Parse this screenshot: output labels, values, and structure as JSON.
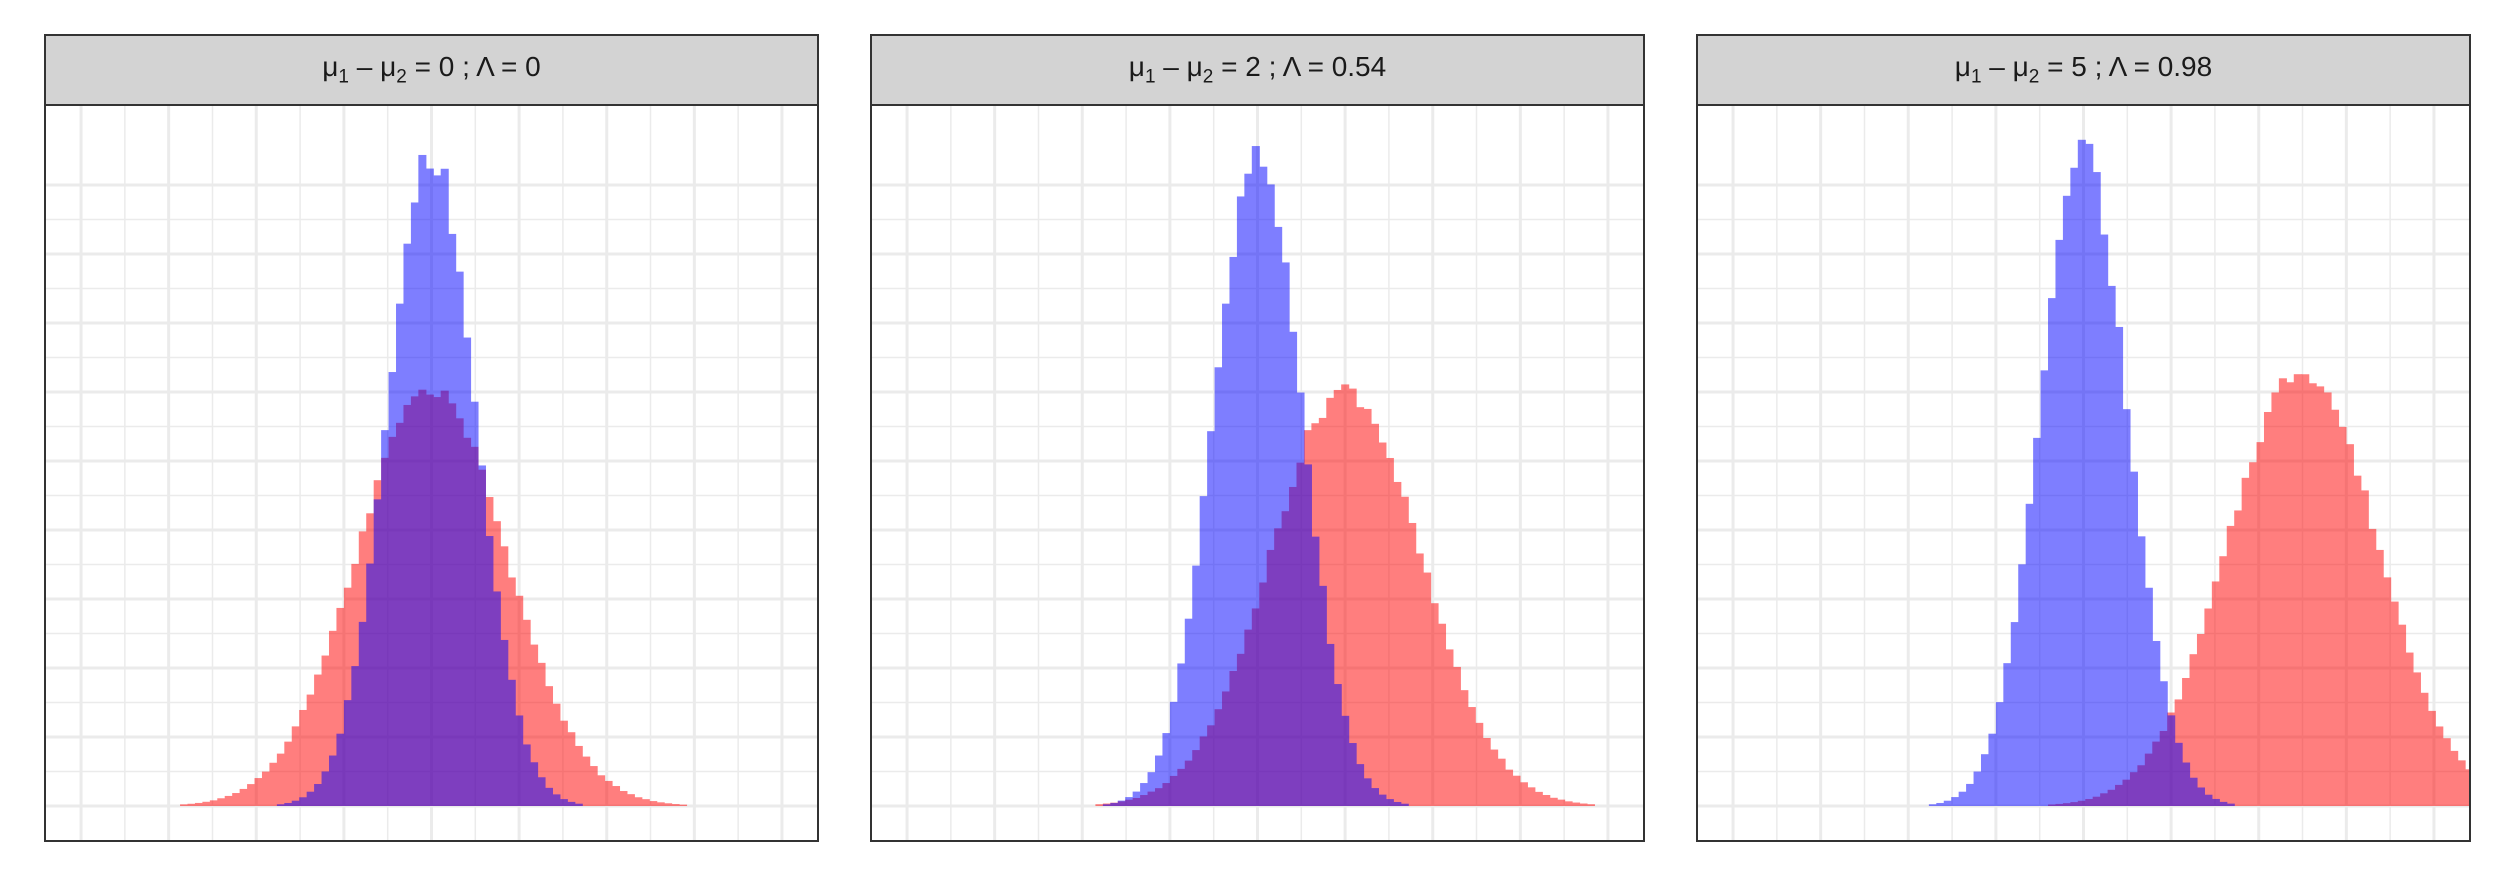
{
  "figure": {
    "panels": [
      {
        "strip": {
          "lhs": "μ",
          "s1": "1",
          "mid": " – μ",
          "s2": "2",
          "rhs": " = 0 ; Λ = 0"
        }
      },
      {
        "strip": {
          "lhs": "μ",
          "s1": "1",
          "mid": " – μ",
          "s2": "2",
          "rhs": " = 2 ; Λ = 0.54"
        }
      },
      {
        "strip": {
          "lhs": "μ",
          "s1": "1",
          "mid": " – μ",
          "s2": "2",
          "rhs": " = 5 ; Λ = 0.98"
        }
      }
    ],
    "colors": {
      "blue": "#0000ff",
      "red": "#ff0000",
      "alpha": 0.5,
      "grid": "#ebebeb",
      "border": "#333333",
      "strip_bg": "#d3d3d3"
    }
  },
  "chart_data": [
    {
      "type": "bar",
      "subtype": "overlaid-histogram",
      "title": "μ1 – μ2 = 0 ; Λ = 0",
      "xlabel": "",
      "ylabel": "",
      "xlim": [
        -8.8,
        8.8
      ],
      "ylim": [
        0,
        1.0
      ],
      "grid": true,
      "legend": "none",
      "series": [
        {
          "color": "#0000ff",
          "mean": 0.0,
          "sd": 1.0,
          "peak": 0.97
        },
        {
          "color": "#ff0000",
          "mean": 0.0,
          "sd": 1.7,
          "peak": 0.62
        }
      ]
    },
    {
      "type": "bar",
      "subtype": "overlaid-histogram",
      "title": "μ1 – μ2 = 2 ; Λ = 0.54",
      "xlabel": "",
      "ylabel": "",
      "xlim": [
        -8.8,
        8.8
      ],
      "ylim": [
        0,
        1.0
      ],
      "grid": true,
      "legend": "none",
      "series": [
        {
          "color": "#0000ff",
          "mean": 0.0,
          "sd": 1.0,
          "peak": 0.97
        },
        {
          "color": "#ff0000",
          "mean": 2.0,
          "sd": 1.7,
          "peak": 0.62
        }
      ]
    },
    {
      "type": "bar",
      "subtype": "overlaid-histogram",
      "title": "μ1 – μ2 = 5 ; Λ = 0.98",
      "xlabel": "",
      "ylabel": "",
      "xlim": [
        -8.8,
        8.8
      ],
      "ylim": [
        0,
        1.0
      ],
      "grid": true,
      "legend": "none",
      "series": [
        {
          "color": "#0000ff",
          "mean": 0.0,
          "sd": 1.0,
          "peak": 0.97
        },
        {
          "color": "#ff0000",
          "mean": 5.0,
          "sd": 1.7,
          "peak": 0.65
        }
      ]
    }
  ]
}
